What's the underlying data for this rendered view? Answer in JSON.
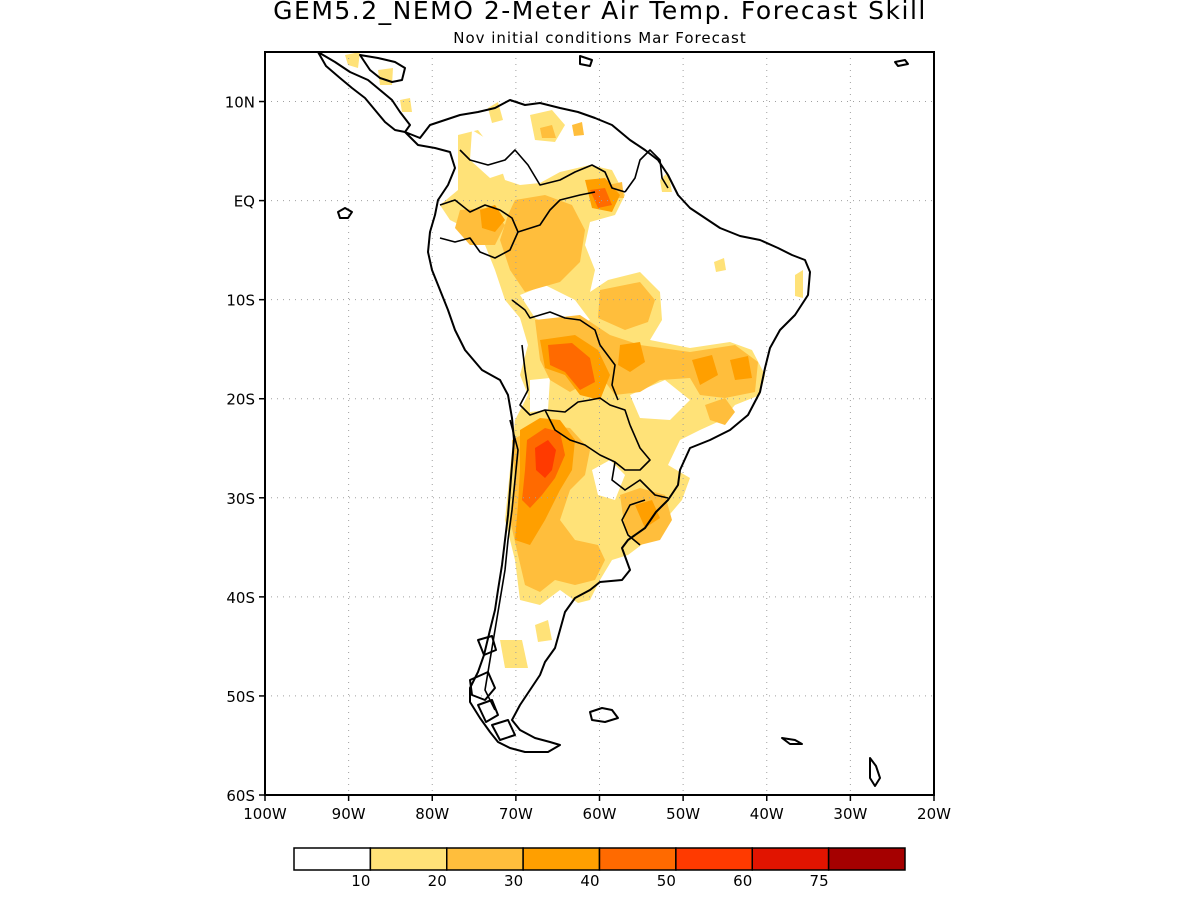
{
  "title": "GEM5.2_NEMO 2-Meter Air Temp. Forecast Skill",
  "subtitle": "Nov initial conditions  Mar Forecast",
  "map": {
    "lon_range": [
      -100,
      -20
    ],
    "lat_range": [
      -60,
      15
    ],
    "grid": true,
    "lon_ticks": [
      "100W",
      "90W",
      "80W",
      "70W",
      "60W",
      "50W",
      "40W",
      "30W",
      "20W"
    ],
    "lat_ticks": [
      "10N",
      "EQ",
      "10S",
      "20S",
      "30S",
      "40S",
      "50S",
      "60S"
    ]
  },
  "colorbar": {
    "colors": [
      "#ffffff",
      "#ffe278",
      "#ffbe3c",
      "#ff9f00",
      "#ff6a00",
      "#ff3a00",
      "#e11400",
      "#a50000"
    ],
    "labels": [
      "10",
      "20",
      "30",
      "40",
      "50",
      "60",
      "75"
    ]
  },
  "colors": {
    "c10": "#ffe278",
    "c20": "#ffbe3c",
    "c30": "#ff9f00",
    "c40": "#ff6a00",
    "c50": "#ff3a00",
    "coast": "#000000"
  }
}
